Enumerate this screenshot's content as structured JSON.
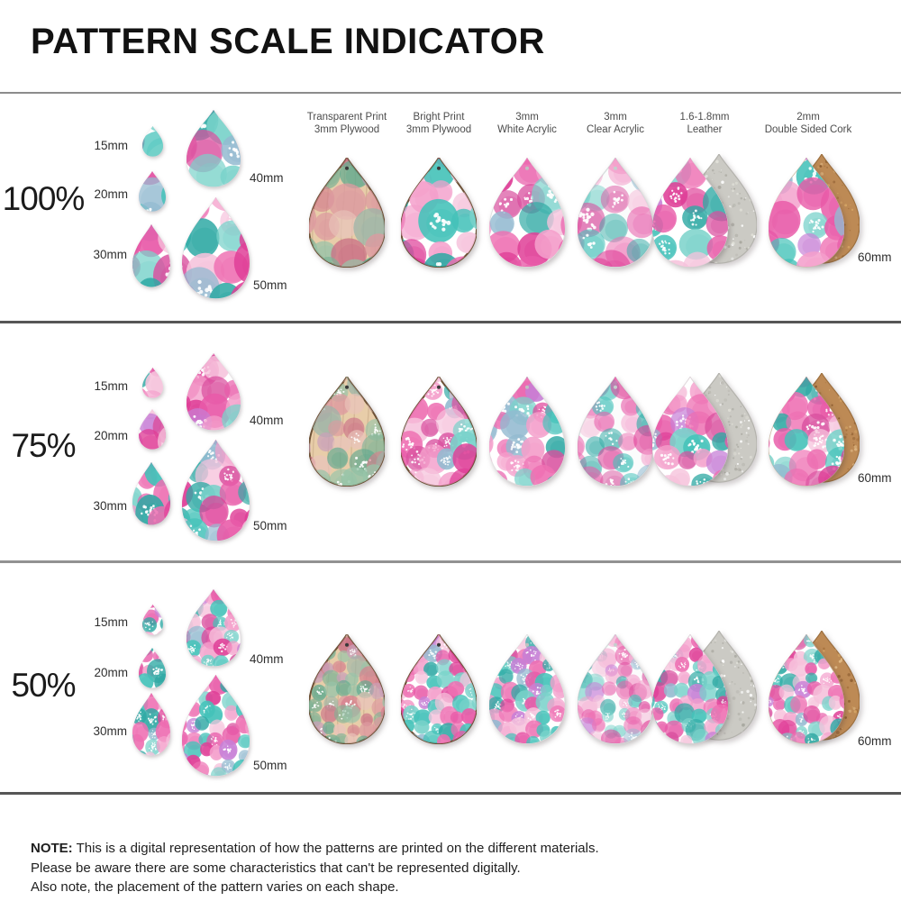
{
  "title": "PATTERN SCALE INDICATOR",
  "rows": [
    {
      "scale_label": "100%",
      "scale": 1.0
    },
    {
      "scale_label": "75%",
      "scale": 0.75
    },
    {
      "scale_label": "50%",
      "scale": 0.5
    }
  ],
  "sizes": [
    {
      "label": "15mm",
      "mm": 15
    },
    {
      "label": "20mm",
      "mm": 20
    },
    {
      "label": "30mm",
      "mm": 30
    },
    {
      "label": "40mm",
      "mm": 40
    },
    {
      "label": "50mm",
      "mm": 50
    }
  ],
  "material_size": {
    "label": "60mm",
    "mm": 60
  },
  "materials": [
    {
      "line1": "Transparent Print",
      "line2": "3mm Plywood",
      "style": "transparent-plywood"
    },
    {
      "line1": "Bright Print",
      "line2": "3mm Plywood",
      "style": "bright-plywood"
    },
    {
      "line1": "3mm",
      "line2": "White Acrylic",
      "style": "white-acrylic"
    },
    {
      "line1": "3mm",
      "line2": "Clear Acrylic",
      "style": "clear-acrylic"
    },
    {
      "line1": "1.6-1.8mm",
      "line2": "Leather",
      "style": "leather"
    },
    {
      "line1": "2mm",
      "line2": "Double Sided Cork",
      "style": "cork"
    }
  ],
  "note": {
    "label": "NOTE:",
    "lines": [
      "This is a digital representation of how the patterns are printed on the different materials.",
      "Please be aware there are some characteristics that can't be represented digitally.",
      "Also note, the placement of the pattern varies on each shape."
    ]
  },
  "colors": {
    "pinks": [
      "#f49fcb",
      "#ee6fb2",
      "#df3e97",
      "#f6c3dc",
      "#e85aa8"
    ],
    "teals": [
      "#44c2b9",
      "#79d2ca",
      "#2fa9a4"
    ],
    "accents": [
      "#c77fd6",
      "#93bad0",
      "#d94f9e"
    ],
    "muted_pinks": [
      "#dd9aa0",
      "#d5808e",
      "#ca7186",
      "#e9c4ba"
    ],
    "muted_teals": [
      "#7cb295",
      "#97c4a9",
      "#5fa98f"
    ],
    "muted_accents": [
      "#c9a0b9",
      "#9ab4a8"
    ],
    "wood": "#e8cda9",
    "wood_edge": "#6d5136",
    "leather_back": "#cbcac4",
    "cork_back": "#bd8a55",
    "divider_dark": "#565656",
    "divider_light": "#929292",
    "text_dark": "#1b1b1b",
    "text_gray": "#4c4c4c"
  }
}
